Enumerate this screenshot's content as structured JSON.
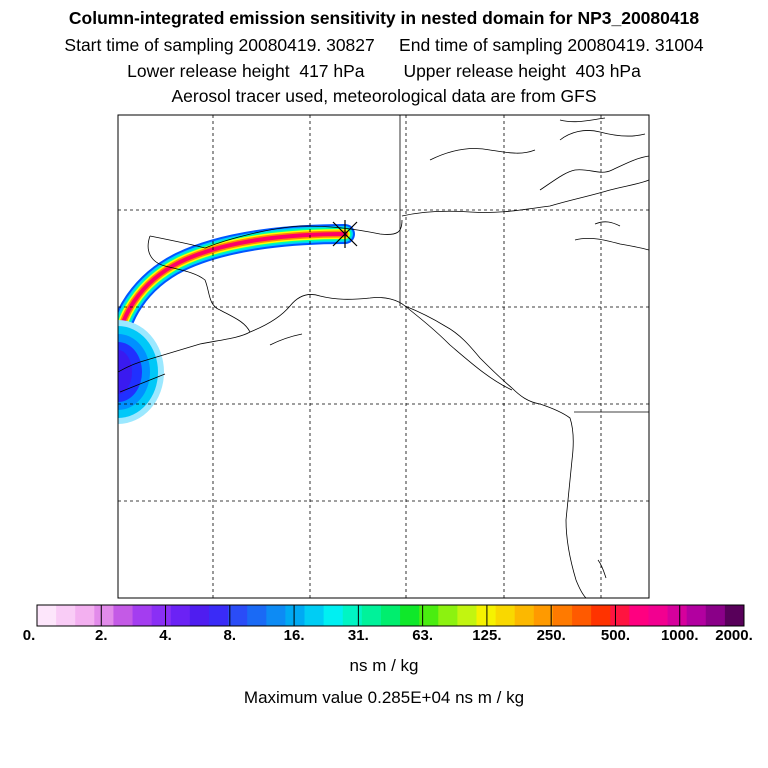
{
  "header": {
    "title": "Column-integrated emission sensitivity in nested domain for NP3_20080418",
    "line2": "Start time of sampling 20080419. 30827     End time of sampling 20080419. 31004",
    "line3": "Lower release height  417 hPa        Upper release height  403 hPa",
    "line4": "Aerosol tracer used, meteorological data are from GFS"
  },
  "map": {
    "receptor_marker": "asterisk-icon",
    "plume_colors": [
      "#0055ff",
      "#00ccff",
      "#00ffaa",
      "#88ff00",
      "#ffff00",
      "#ff8800",
      "#ff0066",
      "#dd00aa"
    ]
  },
  "colorbar": {
    "colors": [
      "#fde6fb",
      "#f9ccf6",
      "#f3b0f0",
      "#e28bea",
      "#c45ae6",
      "#a43df0",
      "#8a2ff5",
      "#6b22f5",
      "#4f1df0",
      "#3a2bf7",
      "#2a4cf7",
      "#1a6af5",
      "#0d8bf4",
      "#00aaf3",
      "#00cdf4",
      "#00f0f2",
      "#00f5c4",
      "#00f29a",
      "#00ee6e",
      "#0fe82a",
      "#4aed10",
      "#8cf210",
      "#c2f510",
      "#f6f200",
      "#f9d800",
      "#fcb800",
      "#ff9a00",
      "#ff7a00",
      "#ff5a00",
      "#ff3300",
      "#ff1440",
      "#ff0080",
      "#f20090",
      "#d6009c",
      "#b200a0",
      "#8a0088",
      "#58005a"
    ],
    "ticks": [
      "0.",
      "2.",
      "4.",
      "8.",
      "16.",
      "31.",
      "63.",
      "125.",
      "250.",
      "500.",
      "1000.",
      "2000."
    ],
    "unit_label": "ns m / kg",
    "max_label": "Maximum value  0.285E+04 ns m / kg"
  }
}
